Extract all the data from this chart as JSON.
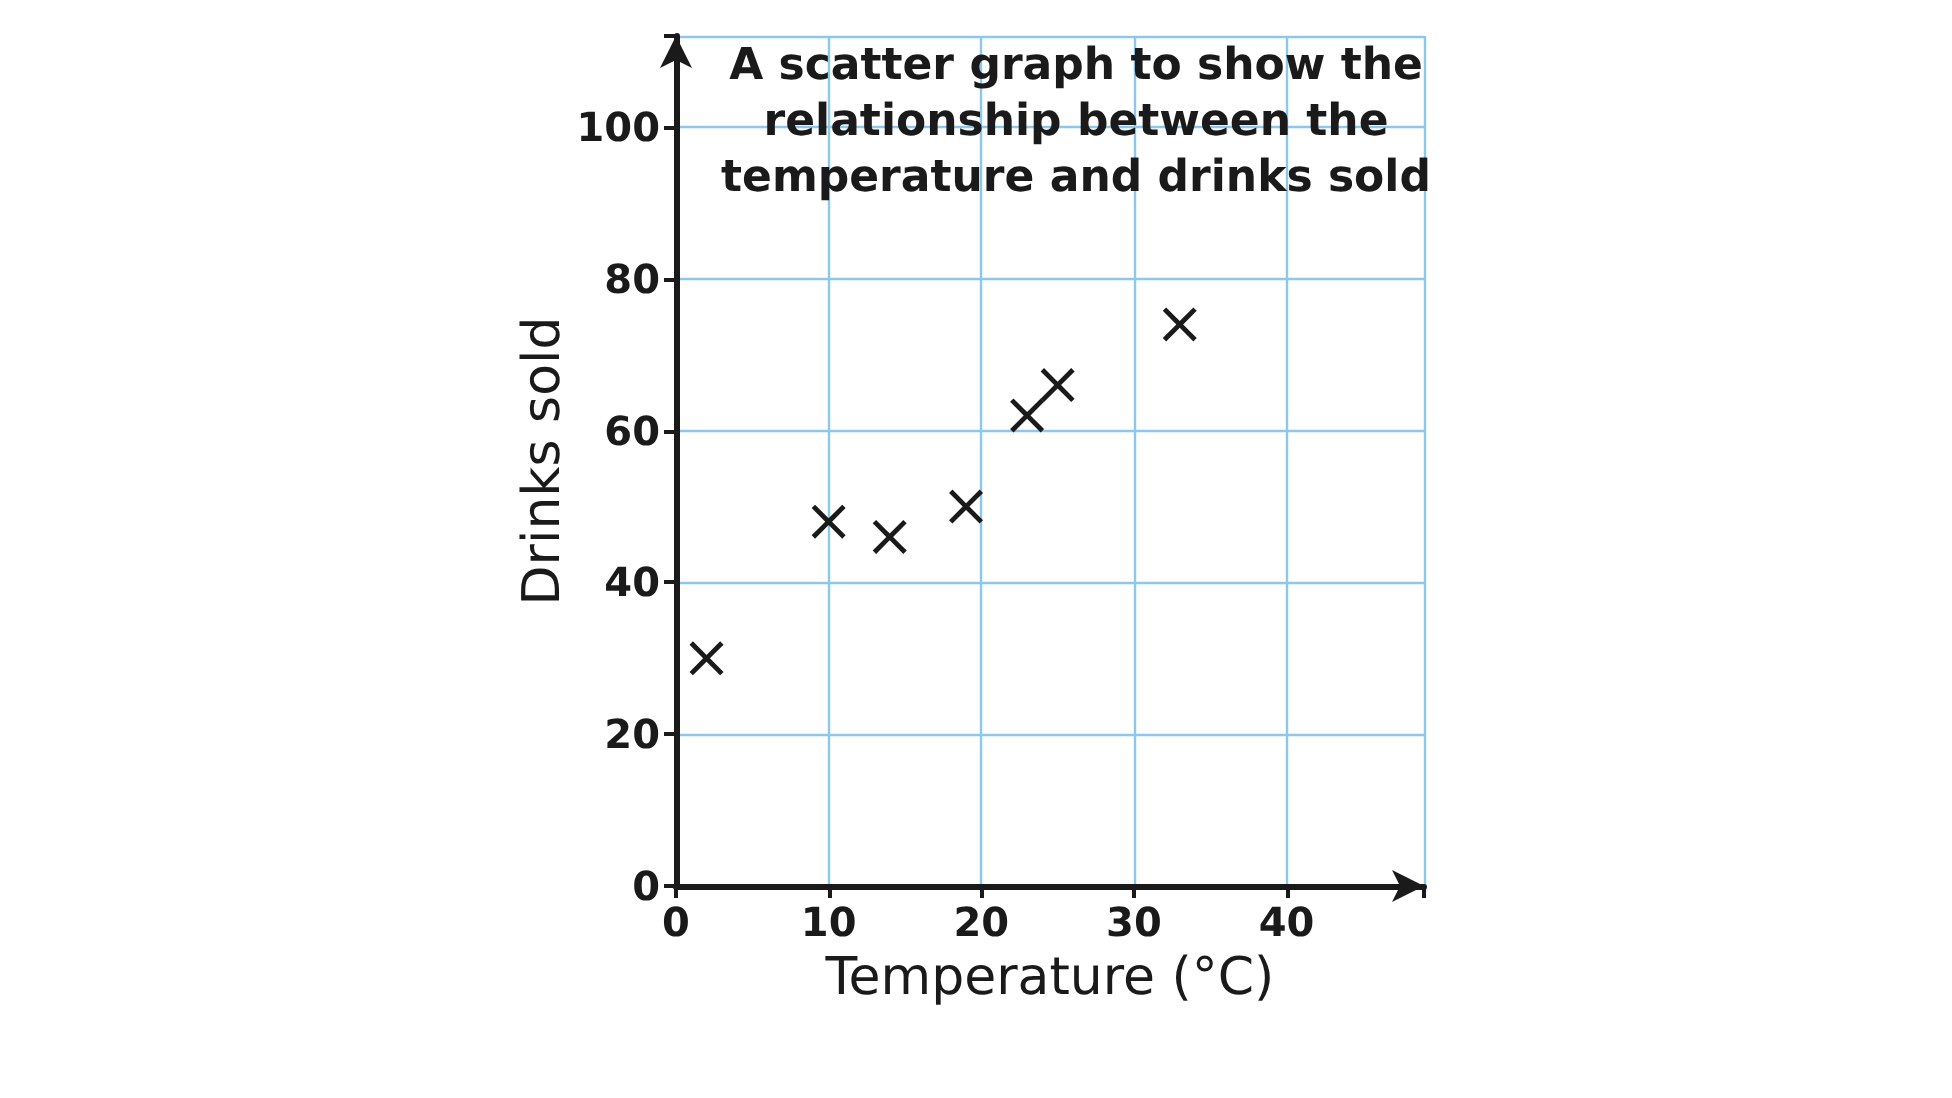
{
  "chart_data": {
    "type": "scatter",
    "title": "A scatter graph to show the\nrelationship between the\ntemperature and drinks sold",
    "xlabel": "Temperature (°C)",
    "ylabel": "Drinks sold",
    "x": [
      2,
      10,
      14,
      19,
      23,
      25,
      33
    ],
    "values": [
      30,
      48,
      46,
      50,
      62,
      66,
      74
    ],
    "color": "#1a1a1a",
    "marker": "cross",
    "grid": true,
    "xlim": [
      0,
      49
    ],
    "xticks": [
      0,
      10,
      20,
      30,
      40
    ],
    "ylim": [
      0,
      112
    ],
    "yticks": [
      0,
      20,
      40,
      60,
      80,
      100
    ]
  }
}
